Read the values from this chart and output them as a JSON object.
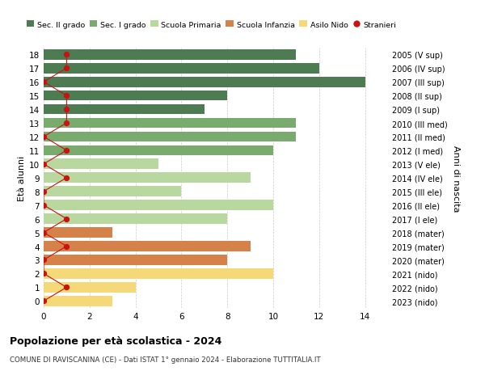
{
  "ages": [
    18,
    17,
    16,
    15,
    14,
    13,
    12,
    11,
    10,
    9,
    8,
    7,
    6,
    5,
    4,
    3,
    2,
    1,
    0
  ],
  "right_labels": [
    "2005 (V sup)",
    "2006 (IV sup)",
    "2007 (III sup)",
    "2008 (II sup)",
    "2009 (I sup)",
    "2010 (III med)",
    "2011 (II med)",
    "2012 (I med)",
    "2013 (V ele)",
    "2014 (IV ele)",
    "2015 (III ele)",
    "2016 (II ele)",
    "2017 (I ele)",
    "2018 (mater)",
    "2019 (mater)",
    "2020 (mater)",
    "2021 (nido)",
    "2022 (nido)",
    "2023 (nido)"
  ],
  "bar_values": [
    11,
    12,
    14,
    8,
    7,
    11,
    11,
    10,
    5,
    9,
    6,
    10,
    8,
    3,
    9,
    8,
    10,
    4,
    3
  ],
  "bar_colors": [
    "#4d7c52",
    "#4d7c52",
    "#4d7c52",
    "#4d7c52",
    "#4d7c52",
    "#7aab6e",
    "#7aab6e",
    "#7aab6e",
    "#b8d8a0",
    "#b8d8a0",
    "#b8d8a0",
    "#b8d8a0",
    "#b8d8a0",
    "#d4814a",
    "#d4814a",
    "#d4814a",
    "#f5d878",
    "#f5d878",
    "#f5d878"
  ],
  "stranieri_positions": {
    "18": 1,
    "17": 1,
    "16": 0,
    "15": 1,
    "14": 1,
    "13": 1,
    "12": 0,
    "11": 1,
    "10": 0,
    "9": 1,
    "8": 0,
    "7": 0,
    "6": 1,
    "5": 0,
    "4": 1,
    "3": 0,
    "2": 0,
    "1": 1,
    "0": 0
  },
  "title": "Popolazione per età scolastica - 2024",
  "subtitle": "COMUNE DI RAVISCANINA (CE) - Dati ISTAT 1° gennaio 2024 - Elaborazione TUTTITALIA.IT",
  "ylabel_left": "Età alunni",
  "ylabel_right": "Anni di nascita",
  "xlim": [
    0,
    15
  ],
  "xticks": [
    0,
    2,
    4,
    6,
    8,
    10,
    12,
    14
  ],
  "legend_items": [
    {
      "label": "Sec. II grado",
      "color": "#4d7c52",
      "type": "patch"
    },
    {
      "label": "Sec. I grado",
      "color": "#7aab6e",
      "type": "patch"
    },
    {
      "label": "Scuola Primaria",
      "color": "#b8d8a0",
      "type": "patch"
    },
    {
      "label": "Scuola Infanzia",
      "color": "#d4814a",
      "type": "patch"
    },
    {
      "label": "Asilo Nido",
      "color": "#f5d878",
      "type": "patch"
    },
    {
      "label": "Stranieri",
      "color": "#cc1111",
      "type": "circle"
    }
  ],
  "stranieri_line_color": "#cc1111",
  "background_color": "#ffffff",
  "grid_color": "#cccccc",
  "bar_height": 0.75
}
